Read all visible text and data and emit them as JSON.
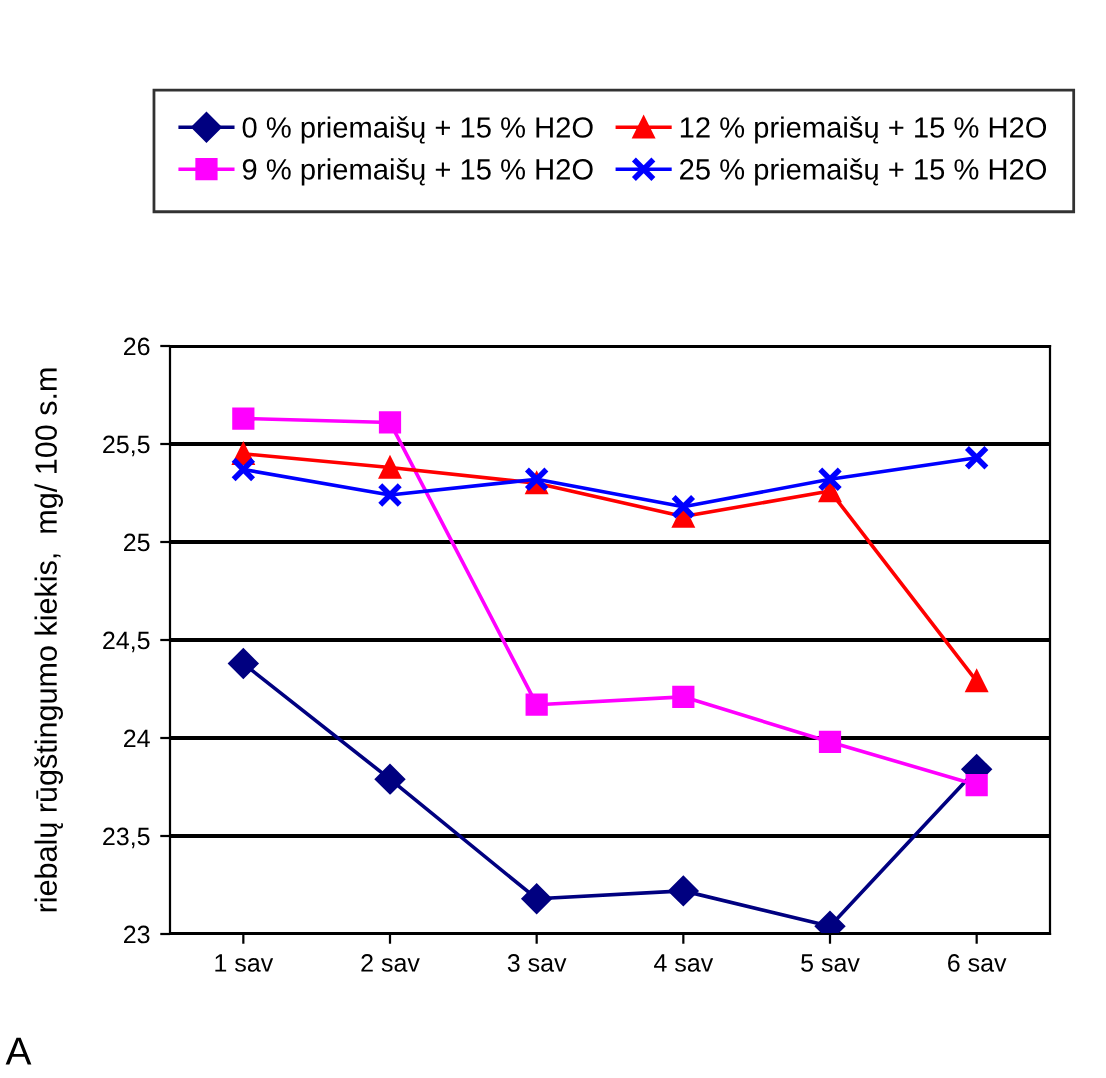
{
  "chart_data": {
    "type": "line",
    "ylabel": "riebalų rūgštingumo kiekis,  mg/ 100 s.m",
    "categories": [
      "1 sav",
      "2 sav",
      "3 sav",
      "4 sav",
      "5 sav",
      "6 sav"
    ],
    "series": [
      {
        "name": "0 % priemaišų + 15 % H2O",
        "color": "#000080",
        "marker": "diamond",
        "values": [
          24.38,
          23.79,
          23.18,
          23.22,
          23.04,
          23.84
        ]
      },
      {
        "name": "9 % priemaišų + 15 % H2O",
        "color": "#ff00ff",
        "marker": "square",
        "values": [
          25.63,
          25.61,
          24.17,
          24.21,
          23.98,
          23.76
        ]
      },
      {
        "name": "12 % priemaišų + 15 % H2O",
        "color": "#ff0000",
        "marker": "triangle",
        "values": [
          25.45,
          25.38,
          25.3,
          25.13,
          25.26,
          24.29
        ]
      },
      {
        "name": "25 % priemaišų + 15 % H2O",
        "color": "#0000ff",
        "marker": "cross",
        "values": [
          25.37,
          25.24,
          25.32,
          25.18,
          25.32,
          25.43
        ]
      }
    ],
    "ylim": [
      23,
      26
    ],
    "yticks": [
      {
        "value": 23,
        "label": "23"
      },
      {
        "value": 23.5,
        "label": "23,5"
      },
      {
        "value": 24,
        "label": "24"
      },
      {
        "value": 24.5,
        "label": "24,5"
      },
      {
        "value": 25,
        "label": "25"
      },
      {
        "value": 25.5,
        "label": "25,5"
      },
      {
        "value": 26,
        "label": "26"
      }
    ],
    "grid": "y",
    "legend": "top",
    "annotations": [
      "A"
    ]
  }
}
